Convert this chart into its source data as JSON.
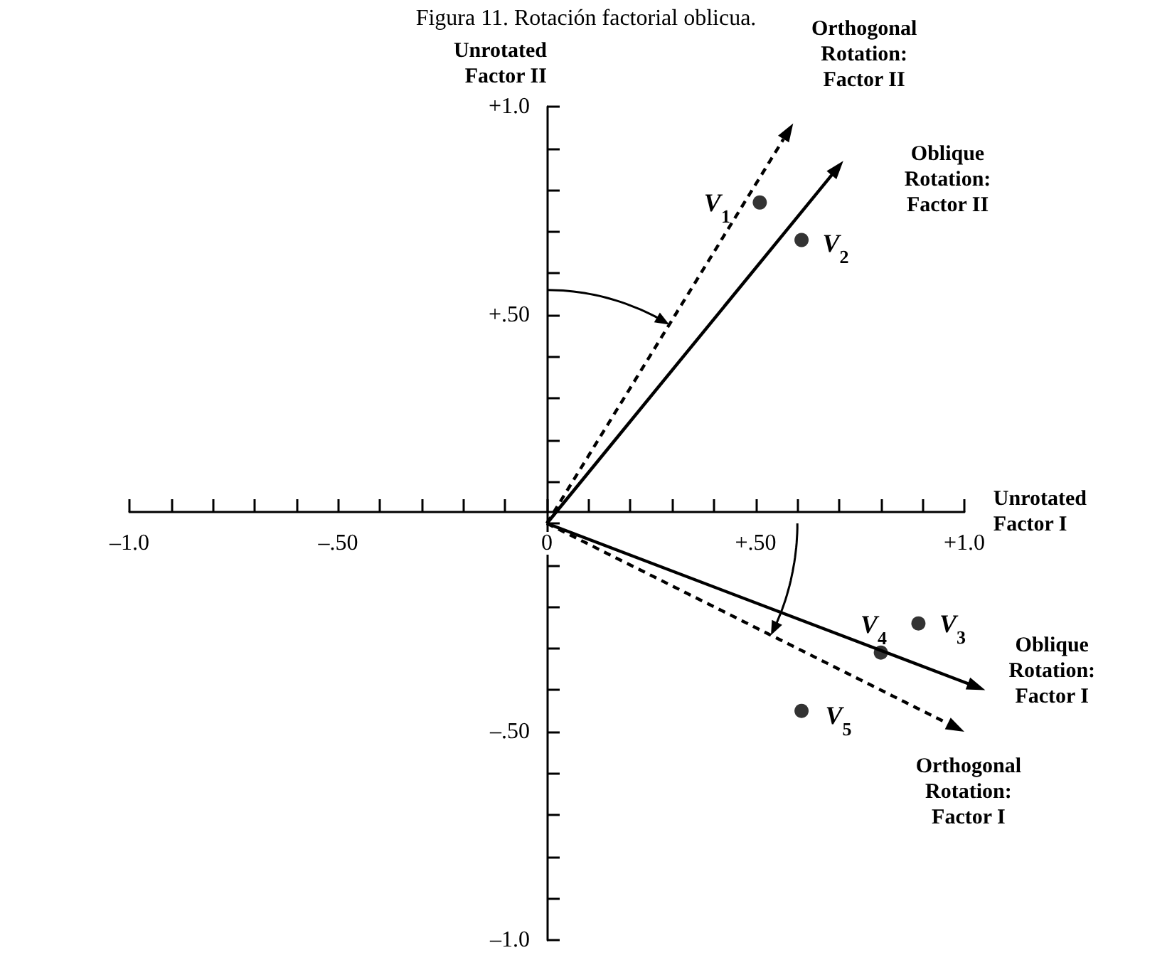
{
  "chart_data": {
    "type": "scatter",
    "title": "Figura 11. Rotación factorial oblicua.",
    "xlabel": "Unrotated Factor I",
    "ylabel": "Unrotated Factor II",
    "xlim": [
      -1,
      1
    ],
    "ylim": [
      -1,
      1
    ],
    "xticks": [
      {
        "value": -1,
        "label": "–1.0"
      },
      {
        "value": -0.9,
        "label": null
      },
      {
        "value": -0.8,
        "label": null
      },
      {
        "value": -0.7,
        "label": null
      },
      {
        "value": -0.6,
        "label": null
      },
      {
        "value": -0.5,
        "label": "–.50"
      },
      {
        "value": -0.4,
        "label": null
      },
      {
        "value": -0.3,
        "label": null
      },
      {
        "value": -0.2,
        "label": null
      },
      {
        "value": -0.1,
        "label": null
      },
      {
        "value": 0,
        "label": "0"
      },
      {
        "value": 0.1,
        "label": null
      },
      {
        "value": 0.2,
        "label": null
      },
      {
        "value": 0.3,
        "label": null
      },
      {
        "value": 0.4,
        "label": null
      },
      {
        "value": 0.5,
        "label": "+.50"
      },
      {
        "value": 0.6,
        "label": null
      },
      {
        "value": 0.7,
        "label": null
      },
      {
        "value": 0.8,
        "label": null
      },
      {
        "value": 0.9,
        "label": null
      },
      {
        "value": 1,
        "label": "+1.0"
      }
    ],
    "yticks": [
      {
        "value": -1,
        "label": "–1.0"
      },
      {
        "value": -0.9,
        "label": null
      },
      {
        "value": -0.8,
        "label": null
      },
      {
        "value": -0.7,
        "label": null
      },
      {
        "value": -0.6,
        "label": null
      },
      {
        "value": -0.5,
        "label": "–.50"
      },
      {
        "value": -0.4,
        "label": null
      },
      {
        "value": -0.3,
        "label": null
      },
      {
        "value": -0.2,
        "label": null
      },
      {
        "value": -0.1,
        "label": null
      },
      {
        "value": 0,
        "label": null
      },
      {
        "value": 0.1,
        "label": null
      },
      {
        "value": 0.2,
        "label": null
      },
      {
        "value": 0.3,
        "label": null
      },
      {
        "value": 0.4,
        "label": null
      },
      {
        "value": 0.5,
        "label": "+.50"
      },
      {
        "value": 0.6,
        "label": null
      },
      {
        "value": 0.7,
        "label": null
      },
      {
        "value": 0.8,
        "label": null
      },
      {
        "value": 0.9,
        "label": null
      },
      {
        "value": 1,
        "label": "+1.0"
      }
    ],
    "marker": "circle",
    "series": [
      {
        "color": "#000000",
        "x": [
          0.51,
          0.61,
          0.89,
          0.8,
          0.61
        ],
        "values": [
          0.77,
          0.68,
          -0.24,
          -0.31,
          -0.45
        ]
      }
    ],
    "annotations": [
      "V$_{1}$",
      "V$_{2}$",
      "V$_{3}$",
      "V$_{4}$",
      "V$_{5}$",
      "Orthogonal Rotation: Factor II",
      "Oblique Rotation: Factor II",
      "Oblique Rotation: Factor I",
      "Orthogonal Rotation: Factor I"
    ]
  }
}
